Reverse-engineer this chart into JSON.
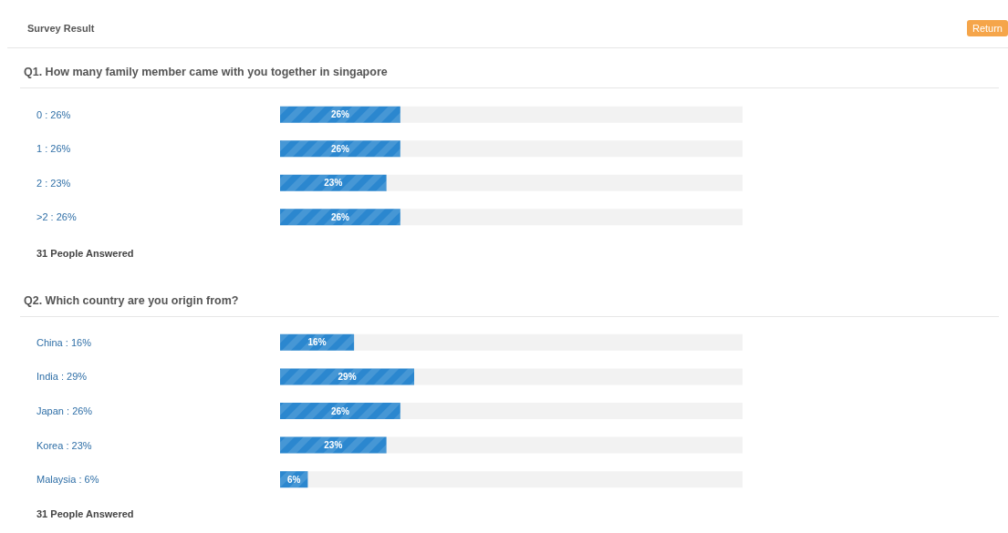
{
  "chart_data": [
    {
      "type": "bar",
      "orientation": "horizontal",
      "title": "Q1. How many family member came with you together in singapore",
      "categories": [
        "0 : 26%",
        "1 : 26%",
        "2 : 23%",
        ">2 : 26%"
      ],
      "values": [
        26,
        26,
        23,
        26
      ],
      "value_labels": [
        "26%",
        "26%",
        "23%",
        "26%"
      ],
      "color": "#2b87cf",
      "xlim": [
        0,
        100
      ],
      "tick_labels": "y",
      "annotations": [
        "Survey Result",
        "Return",
        "31 People Answered"
      ]
    },
    {
      "type": "bar",
      "orientation": "horizontal",
      "title": "Q2. Which country are you origin from?",
      "categories": [
        "China : 16%",
        "India : 29%",
        "Japan : 26%",
        "Korea : 23%",
        "Malaysia : 6%"
      ],
      "values": [
        16,
        29,
        26,
        23,
        6
      ],
      "value_labels": [
        "16%",
        "29%",
        "26%",
        "23%",
        "6%"
      ],
      "color": "#2b87cf",
      "xlim": [
        0,
        100
      ],
      "tick_labels": "y",
      "annotations": [
        "31 People Answered"
      ]
    }
  ]
}
